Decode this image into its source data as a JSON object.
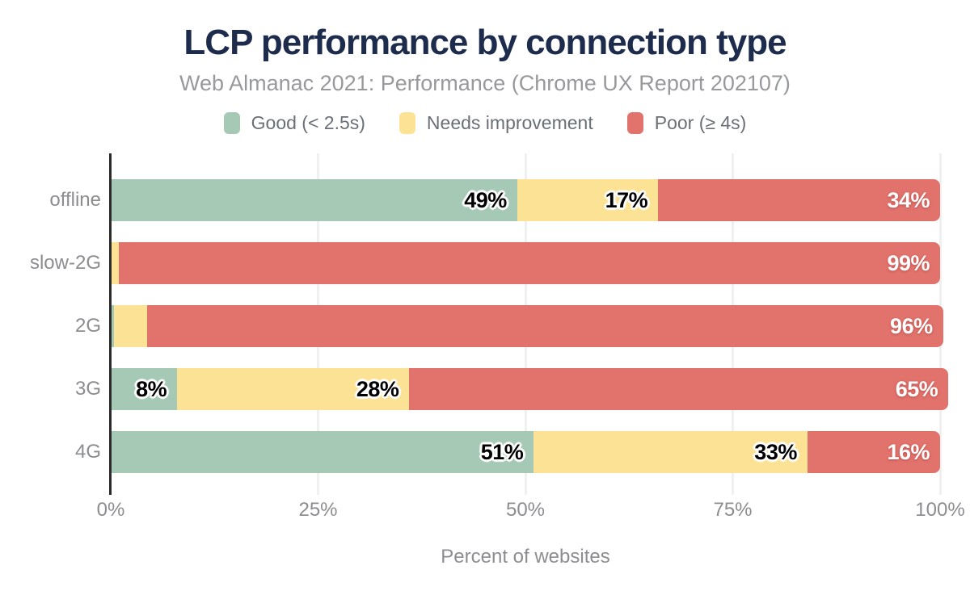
{
  "chart_data": {
    "type": "bar",
    "orientation": "horizontal-stacked",
    "title": "LCP performance by connection type",
    "subtitle": "Web Almanac 2021: Performance (Chrome UX Report 202107)",
    "xlabel": "Percent of websites",
    "xlim": [
      0,
      100
    ],
    "xticks": [
      {
        "value": 0,
        "label": "0%"
      },
      {
        "value": 25,
        "label": "25%"
      },
      {
        "value": 50,
        "label": "50%"
      },
      {
        "value": 75,
        "label": "75%"
      },
      {
        "value": 100,
        "label": "100%"
      }
    ],
    "categories": [
      "offline",
      "slow-2G",
      "2G",
      "3G",
      "4G"
    ],
    "series": [
      {
        "name": "Good (< 2.5s)",
        "color": "#a6c9b6",
        "label_style": "dark",
        "values": [
          49,
          0,
          0.35,
          8,
          51
        ],
        "labels": [
          "49%",
          "0%",
          "0%",
          "8%",
          "51%"
        ]
      },
      {
        "name": "Needs improvement",
        "color": "#fce294",
        "label_style": "dark",
        "values": [
          17,
          1,
          4,
          28,
          33
        ],
        "labels": [
          "17%",
          "1%",
          "4%",
          "28%",
          "33%"
        ]
      },
      {
        "name": "Poor (≥ 4s)",
        "color": "#e2726c",
        "label_style": "light",
        "values": [
          34,
          99,
          96,
          65,
          16
        ],
        "labels": [
          "34%",
          "99%",
          "96%",
          "65%",
          "16%"
        ]
      }
    ],
    "legend_position": "top-center",
    "grid": "vertical",
    "colors": {
      "title": "#1d2b4c",
      "subtitle": "#97999c",
      "legend_text": "#6b7076",
      "axis_text": "#8b8d90",
      "gridline": "#f0f0f0",
      "axis_line": "#2b2b2b",
      "background": "#ffffff"
    }
  }
}
